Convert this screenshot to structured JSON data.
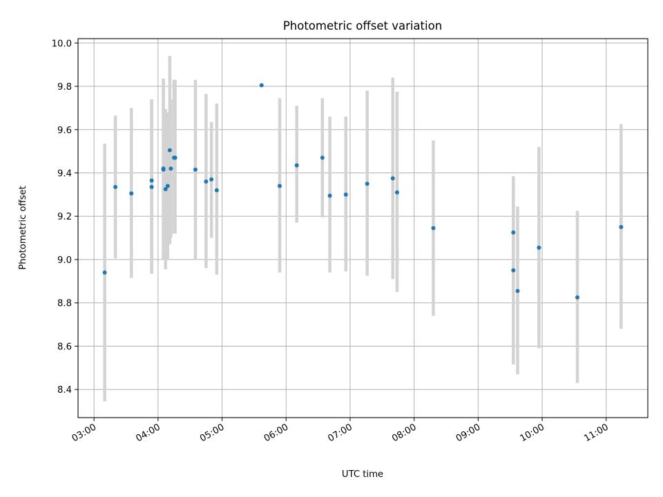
{
  "chart_data": {
    "type": "scatter",
    "title": "Photometric offset variation",
    "xlabel": "UTC time",
    "ylabel": "Photometric offset",
    "x_unit": "hours UTC",
    "xlim": [
      "02:45",
      "11:39"
    ],
    "ylim": [
      8.27,
      10.02
    ],
    "x_ticks": [
      "03:00",
      "04:00",
      "05:00",
      "06:00",
      "07:00",
      "08:00",
      "09:00",
      "10:00",
      "11:00"
    ],
    "y_ticks": [
      "8.4",
      "8.6",
      "8.8",
      "9.0",
      "9.2",
      "9.4",
      "9.6",
      "9.8",
      "10.0"
    ],
    "grid": true,
    "legend": false,
    "point_color": "#1f77b4",
    "errorbar_color": "#d3d3d3",
    "points": [
      {
        "x": "03:10",
        "y": 8.94,
        "lo": 8.345,
        "hi": 9.535
      },
      {
        "x": "03:20",
        "y": 9.335,
        "lo": 9.005,
        "hi": 9.665
      },
      {
        "x": "03:35",
        "y": 9.305,
        "lo": 8.915,
        "hi": 9.7
      },
      {
        "x": "03:54",
        "y": 9.365,
        "lo": 8.935,
        "hi": 9.74
      },
      {
        "x": "03:54",
        "y": 9.335,
        "lo": 8.935,
        "hi": 9.74
      },
      {
        "x": "04:05",
        "y": 9.415,
        "lo": 9.0,
        "hi": 9.835
      },
      {
        "x": "04:05",
        "y": 9.42,
        "lo": 9.0,
        "hi": 9.835
      },
      {
        "x": "04:07",
        "y": 9.325,
        "lo": 8.955,
        "hi": 9.695
      },
      {
        "x": "04:09",
        "y": 9.34,
        "lo": 9.0,
        "hi": 9.68
      },
      {
        "x": "04:11",
        "y": 9.505,
        "lo": 9.07,
        "hi": 9.94
      },
      {
        "x": "04:12",
        "y": 9.42,
        "lo": 9.1,
        "hi": 9.74
      },
      {
        "x": "04:15",
        "y": 9.47,
        "lo": 9.12,
        "hi": 9.83
      },
      {
        "x": "04:16",
        "y": 9.47,
        "lo": 9.12,
        "hi": 9.83
      },
      {
        "x": "04:35",
        "y": 9.415,
        "lo": 9.0,
        "hi": 9.83
      },
      {
        "x": "04:45",
        "y": 9.36,
        "lo": 8.96,
        "hi": 9.765
      },
      {
        "x": "04:50",
        "y": 9.37,
        "lo": 9.1,
        "hi": 9.635
      },
      {
        "x": "04:55",
        "y": 9.32,
        "lo": 8.93,
        "hi": 9.72
      },
      {
        "x": "05:37",
        "y": 9.805,
        "lo": 9.805,
        "hi": 9.805
      },
      {
        "x": "05:54",
        "y": 9.34,
        "lo": 8.94,
        "hi": 9.745
      },
      {
        "x": "06:10",
        "y": 9.435,
        "lo": 9.17,
        "hi": 9.71
      },
      {
        "x": "06:34",
        "y": 9.47,
        "lo": 9.195,
        "hi": 9.745
      },
      {
        "x": "06:41",
        "y": 9.295,
        "lo": 8.94,
        "hi": 9.66
      },
      {
        "x": "06:56",
        "y": 9.3,
        "lo": 8.945,
        "hi": 9.66
      },
      {
        "x": "07:16",
        "y": 9.35,
        "lo": 8.925,
        "hi": 9.78
      },
      {
        "x": "07:40",
        "y": 9.375,
        "lo": 8.91,
        "hi": 9.84
      },
      {
        "x": "07:44",
        "y": 9.31,
        "lo": 8.85,
        "hi": 9.775
      },
      {
        "x": "08:18",
        "y": 9.145,
        "lo": 8.74,
        "hi": 9.55
      },
      {
        "x": "09:33",
        "y": 9.125,
        "lo": 8.86,
        "hi": 9.385
      },
      {
        "x": "09:33",
        "y": 8.95,
        "lo": 8.515,
        "hi": 9.345
      },
      {
        "x": "09:37",
        "y": 8.855,
        "lo": 8.47,
        "hi": 9.245
      },
      {
        "x": "09:57",
        "y": 9.055,
        "lo": 8.59,
        "hi": 9.52
      },
      {
        "x": "10:33",
        "y": 8.825,
        "lo": 8.43,
        "hi": 9.225
      },
      {
        "x": "11:14",
        "y": 9.15,
        "lo": 8.68,
        "hi": 9.625
      }
    ]
  }
}
